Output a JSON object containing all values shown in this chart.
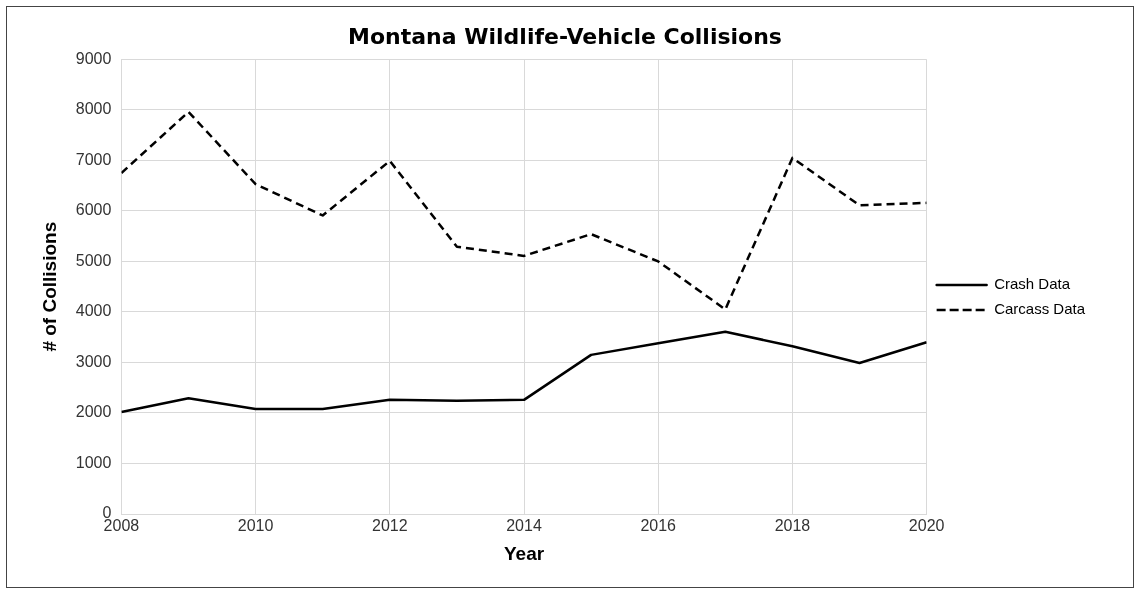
{
  "chart_data": {
    "type": "line",
    "title": "Montana Wildlife-Vehicle Collisions",
    "xlabel": "Year",
    "ylabel": "# of Collisions",
    "x": [
      2008,
      2009,
      2010,
      2011,
      2012,
      2013,
      2014,
      2015,
      2016,
      2017,
      2018,
      2019,
      2020
    ],
    "series": [
      {
        "name": "Crash Data",
        "color": "#000000",
        "line_style": "solid",
        "values": [
          2020,
          2290,
          2080,
          2080,
          2260,
          2240,
          2260,
          3150,
          3380,
          3610,
          3320,
          2990,
          3400
        ]
      },
      {
        "name": "Carcass Data",
        "color": "#000000",
        "line_style": "dashed",
        "values": [
          6750,
          7960,
          6530,
          5910,
          6990,
          5290,
          5110,
          5540,
          5000,
          4050,
          7050,
          6110,
          6160
        ]
      }
    ],
    "xlim": [
      2008,
      2020
    ],
    "xticks": [
      2008,
      2010,
      2012,
      2014,
      2016,
      2018,
      2020
    ],
    "ylim": [
      0,
      9000
    ],
    "yticks": [
      0,
      1000,
      2000,
      3000,
      4000,
      5000,
      6000,
      7000,
      8000,
      9000
    ],
    "grid": true,
    "legend": "right",
    "marker": "none"
  }
}
